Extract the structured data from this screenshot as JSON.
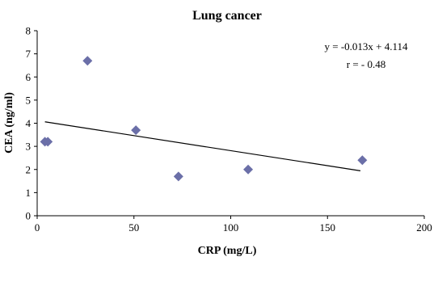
{
  "chart_data": {
    "type": "scatter",
    "title": "Lung cancer",
    "xlabel": "CRP (mg/L)",
    "ylabel": "CEA (ng/ml)",
    "xlim": [
      0,
      200
    ],
    "ylim": [
      0,
      8
    ],
    "x_ticks": [
      "0",
      "50",
      "100",
      "150",
      "200"
    ],
    "y_ticks": [
      "0",
      "1",
      "2",
      "3",
      "4",
      "5",
      "6",
      "7",
      "8"
    ],
    "grid": false,
    "legend": "none",
    "marker": "diamond",
    "colors": {
      "marker": "#6b6fa8",
      "trendline": "#000000",
      "axis": "#000000"
    },
    "points": [
      {
        "x": 4,
        "y": 3.2
      },
      {
        "x": 5.5,
        "y": 3.2
      },
      {
        "x": 26,
        "y": 6.7
      },
      {
        "x": 51,
        "y": 3.7
      },
      {
        "x": 73,
        "y": 1.7
      },
      {
        "x": 109,
        "y": 2.0
      },
      {
        "x": 168,
        "y": 2.4
      }
    ],
    "trendline": {
      "slope": -0.013,
      "intercept": 4.114,
      "x_range": [
        4,
        167
      ]
    },
    "annotations": {
      "equation": "y = -0.013x + 4.114",
      "r": "r = - 0.48"
    }
  }
}
